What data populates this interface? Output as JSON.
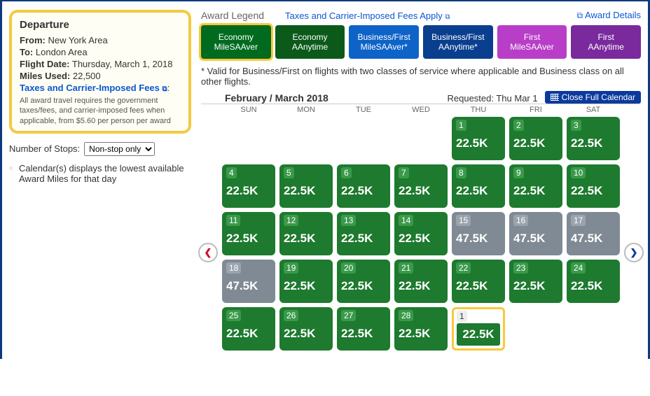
{
  "sidebar": {
    "title": "Departure",
    "from_label": "From:",
    "from_val": "New York Area",
    "to_label": "To:",
    "to_val": "London Area",
    "date_label": "Flight Date:",
    "date_val": "Thursday, March 1, 2018",
    "miles_label": "Miles Used:",
    "miles_val": "22,500",
    "taxes_link": "Taxes and Carrier-Imposed Fees",
    "fineprint": "All award travel requires the government taxes/fees, and carrier-imposed fees when applicable, from $5.60 per person per award",
    "stops_label": "Number of Stops:",
    "stops_options": [
      "Non-stop only"
    ],
    "stops_selected": "Non-stop only",
    "note": "Calendar(s) displays the lowest available Award Miles for that day"
  },
  "legend": {
    "title": "Award Legend",
    "taxes_apply": "Taxes and Carrier-Imposed Fees Apply",
    "details": "Award Details",
    "items": [
      {
        "l1": "Economy",
        "l2": "MileSAAver",
        "bg": "#006b1f",
        "selected": true
      },
      {
        "l1": "Economy",
        "l2": "AAnytime",
        "bg": "#0b5a1a"
      },
      {
        "l1": "Business/First",
        "l2": "MileSAAver*",
        "bg": "#0e63c8"
      },
      {
        "l1": "Business/First",
        "l2": "AAnytime*",
        "bg": "#0a3e8f"
      },
      {
        "l1": "First",
        "l2": "MileSAAver",
        "bg": "#b83ec7"
      },
      {
        "l1": "First",
        "l2": "AAnytime",
        "bg": "#7a2a9c"
      }
    ],
    "footnote": "* Valid for Business/First on flights with two classes of service where applicable and Business class on all other flights."
  },
  "calendar": {
    "title": "February / March 2018",
    "requested": "Requested: Thu Mar 1",
    "close": "Close Full Calendar",
    "dow": [
      "SUN",
      "MON",
      "TUE",
      "WED",
      "THU",
      "FRI",
      "SAT"
    ],
    "cells": [
      null,
      null,
      null,
      null,
      {
        "d": "1",
        "p": "22.5K",
        "c": "green"
      },
      {
        "d": "2",
        "p": "22.5K",
        "c": "green"
      },
      {
        "d": "3",
        "p": "22.5K",
        "c": "green"
      },
      {
        "d": "4",
        "p": "22.5K",
        "c": "green"
      },
      {
        "d": "5",
        "p": "22.5K",
        "c": "green"
      },
      {
        "d": "6",
        "p": "22.5K",
        "c": "green"
      },
      {
        "d": "7",
        "p": "22.5K",
        "c": "green"
      },
      {
        "d": "8",
        "p": "22.5K",
        "c": "green"
      },
      {
        "d": "9",
        "p": "22.5K",
        "c": "green"
      },
      {
        "d": "10",
        "p": "22.5K",
        "c": "green"
      },
      {
        "d": "11",
        "p": "22.5K",
        "c": "green"
      },
      {
        "d": "12",
        "p": "22.5K",
        "c": "green"
      },
      {
        "d": "13",
        "p": "22.5K",
        "c": "green"
      },
      {
        "d": "14",
        "p": "22.5K",
        "c": "green"
      },
      {
        "d": "15",
        "p": "47.5K",
        "c": "grey"
      },
      {
        "d": "16",
        "p": "47.5K",
        "c": "grey"
      },
      {
        "d": "17",
        "p": "47.5K",
        "c": "grey"
      },
      {
        "d": "18",
        "p": "47.5K",
        "c": "grey"
      },
      {
        "d": "19",
        "p": "22.5K",
        "c": "green"
      },
      {
        "d": "20",
        "p": "22.5K",
        "c": "green"
      },
      {
        "d": "21",
        "p": "22.5K",
        "c": "green"
      },
      {
        "d": "22",
        "p": "22.5K",
        "c": "green"
      },
      {
        "d": "23",
        "p": "22.5K",
        "c": "green"
      },
      {
        "d": "24",
        "p": "22.5K",
        "c": "green"
      },
      {
        "d": "25",
        "p": "22.5K",
        "c": "green"
      },
      {
        "d": "26",
        "p": "22.5K",
        "c": "green"
      },
      {
        "d": "27",
        "p": "22.5K",
        "c": "green"
      },
      {
        "d": "28",
        "p": "22.5K",
        "c": "green"
      },
      {
        "d": "1",
        "p": "22.5K",
        "c": "green",
        "sel": true
      },
      null,
      null
    ]
  }
}
